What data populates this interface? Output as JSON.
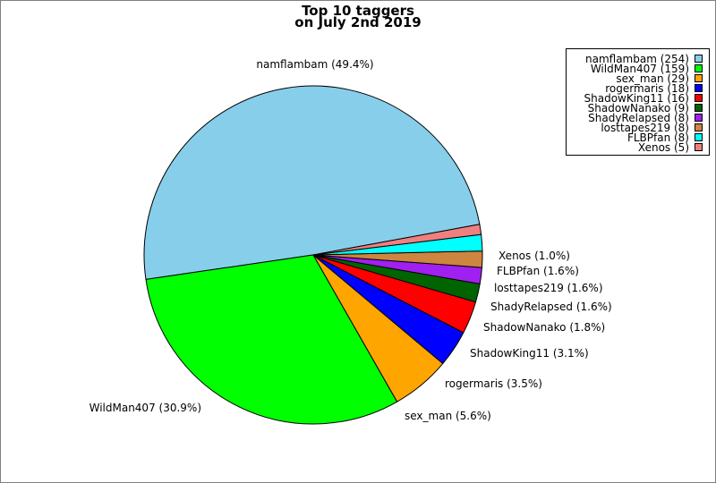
{
  "chart_data": {
    "type": "pie",
    "title_lines": [
      "Top 10 taggers",
      "on July 2nd 2019"
    ],
    "legend_position": "top-right",
    "slices": [
      {
        "name": "namflambam",
        "value": 254,
        "label": "namflambam (49.4%)",
        "legend": "namflambam (254)",
        "color": "#87ceeb"
      },
      {
        "name": "WildMan407",
        "value": 159,
        "label": "WildMan407 (30.9%)",
        "legend": "WildMan407 (159)",
        "color": "#00ff00"
      },
      {
        "name": "sex_man",
        "value": 29,
        "label": "sex_man (5.6%)",
        "legend": "sex_man (29)",
        "color": "#ffa500"
      },
      {
        "name": "rogermaris",
        "value": 18,
        "label": "rogermaris (3.5%)",
        "legend": "rogermaris (18)",
        "color": "#0000ff"
      },
      {
        "name": "ShadowKing11",
        "value": 16,
        "label": "ShadowKing11 (3.1%)",
        "legend": "ShadowKing11 (16)",
        "color": "#ff0000"
      },
      {
        "name": "ShadowNanako",
        "value": 9,
        "label": "ShadowNanako (1.8%)",
        "legend": "ShadowNanako (9)",
        "color": "#006400"
      },
      {
        "name": "ShadyRelapsed",
        "value": 8,
        "label": "ShadyRelapsed (1.6%)",
        "legend": "ShadyRelapsed (8)",
        "color": "#a020f0"
      },
      {
        "name": "losttapes219",
        "value": 8,
        "label": "losttapes219 (1.6%)",
        "legend": "losttapes219 (8)",
        "color": "#cd853f"
      },
      {
        "name": "FLBPfan",
        "value": 8,
        "label": "FLBPfan (1.6%)",
        "legend": "FLBPfan (8)",
        "color": "#00ffff"
      },
      {
        "name": "Xenos",
        "value": 5,
        "label": "Xenos (1.0%)",
        "legend": "Xenos (5)",
        "color": "#f08080"
      }
    ]
  }
}
